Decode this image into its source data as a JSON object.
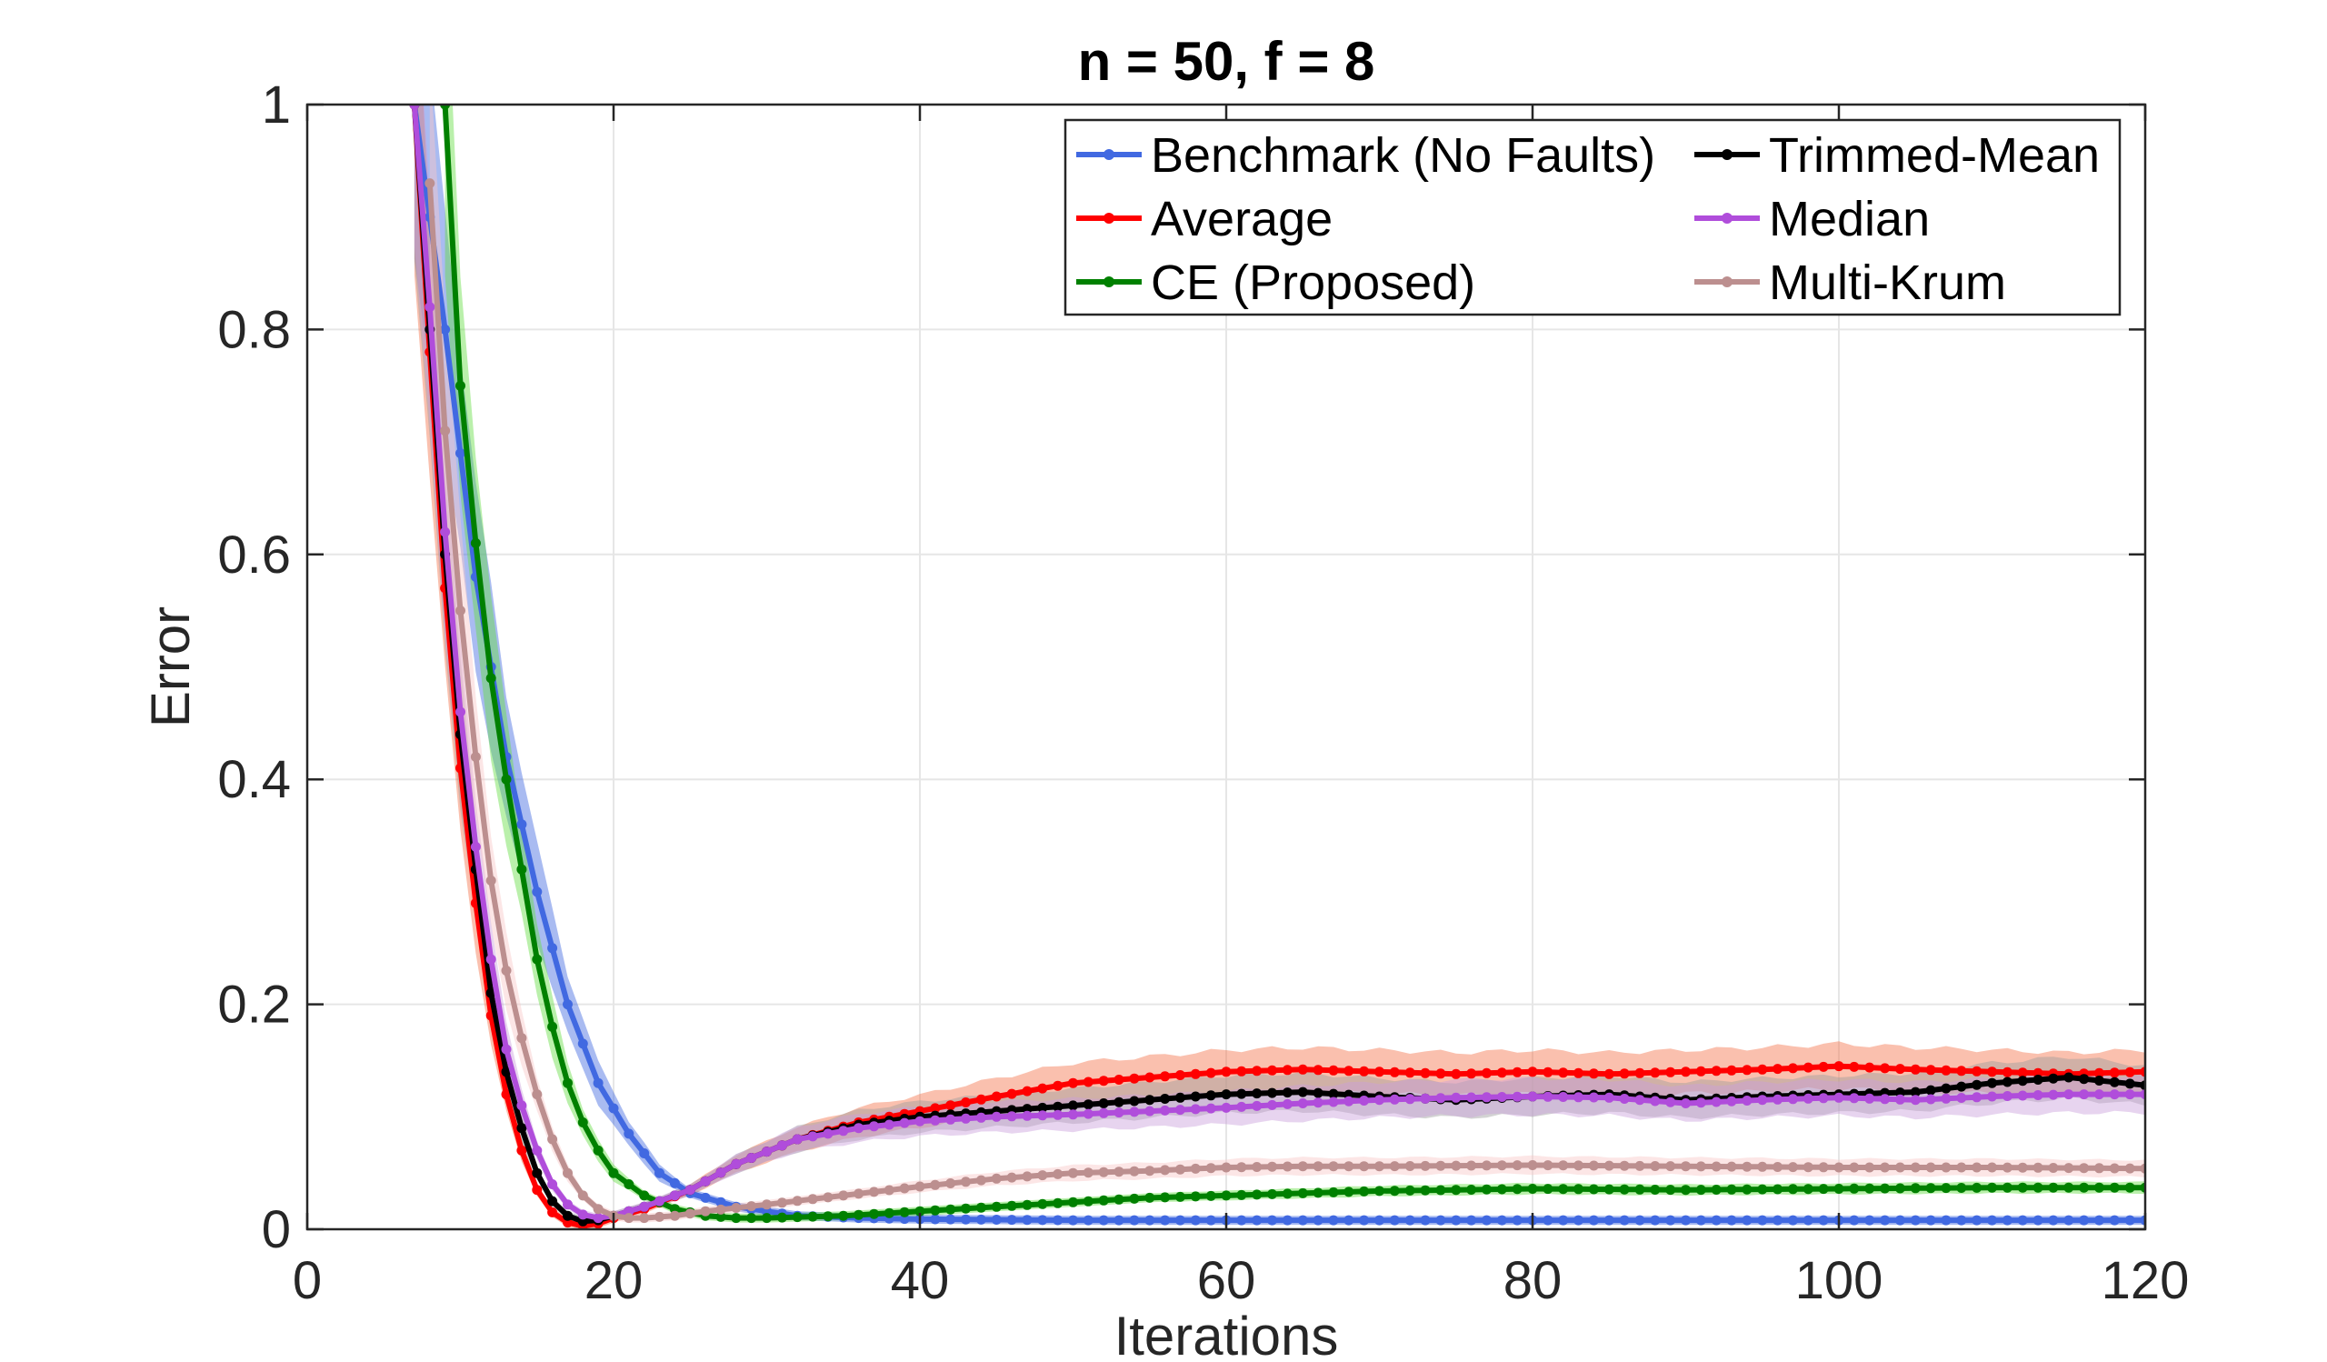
{
  "chart_data": {
    "type": "line",
    "title": "n = 50, f = 8",
    "xlabel": "Iterations",
    "ylabel": "Error",
    "xlim": [
      0,
      120
    ],
    "ylim": [
      0,
      1
    ],
    "xticks": [
      0,
      20,
      40,
      60,
      80,
      100,
      120
    ],
    "yticks": [
      0,
      0.2,
      0.4,
      0.6,
      0.8,
      1
    ],
    "xtick_labels": [
      "0",
      "20",
      "40",
      "60",
      "80",
      "100",
      "120"
    ],
    "ytick_labels": [
      "0",
      "0.2",
      "0.4",
      "0.6",
      "0.8",
      "1"
    ],
    "grid": true,
    "legend_position": "top-right",
    "legend_columns": 2,
    "series": [
      {
        "name": "Benchmark (No Faults)",
        "color": "#4169E1",
        "band_color": "#4169E1",
        "x": [
          7,
          9,
          11,
          13,
          15,
          17,
          19,
          21,
          23,
          25,
          28,
          32,
          36,
          40,
          50,
          60,
          70,
          80,
          90,
          100,
          110,
          120
        ],
        "y": [
          1.0,
          0.8,
          0.58,
          0.42,
          0.3,
          0.2,
          0.13,
          0.085,
          0.05,
          0.032,
          0.02,
          0.012,
          0.01,
          0.009,
          0.008,
          0.008,
          0.008,
          0.008,
          0.008,
          0.008,
          0.008,
          0.008
        ]
      },
      {
        "name": "Average",
        "color": "#FF0000",
        "band_color": "#F4734C",
        "x": [
          7,
          8,
          9,
          10,
          11,
          12,
          13,
          14,
          15,
          16,
          17,
          18,
          19,
          20,
          22,
          25,
          28,
          32,
          36,
          40,
          45,
          50,
          55,
          60,
          65,
          70,
          75,
          80,
          85,
          90,
          95,
          100,
          105,
          110,
          115,
          120
        ],
        "y": [
          1.0,
          0.78,
          0.57,
          0.41,
          0.29,
          0.19,
          0.12,
          0.07,
          0.035,
          0.015,
          0.006,
          0.003,
          0.005,
          0.01,
          0.018,
          0.035,
          0.058,
          0.08,
          0.095,
          0.105,
          0.118,
          0.13,
          0.135,
          0.14,
          0.142,
          0.14,
          0.138,
          0.14,
          0.138,
          0.14,
          0.142,
          0.145,
          0.142,
          0.14,
          0.138,
          0.14
        ]
      },
      {
        "name": "CE (Proposed)",
        "color": "#008000",
        "band_color": "#66DD44",
        "x": [
          9,
          10,
          11,
          12,
          13,
          14,
          15,
          16,
          17,
          18,
          19,
          20,
          22,
          24,
          26,
          28,
          30,
          35,
          40,
          45,
          50,
          55,
          60,
          70,
          80,
          90,
          100,
          110,
          120
        ],
        "y": [
          1.0,
          0.75,
          0.61,
          0.49,
          0.4,
          0.32,
          0.24,
          0.18,
          0.13,
          0.095,
          0.07,
          0.05,
          0.03,
          0.018,
          0.012,
          0.01,
          0.01,
          0.012,
          0.016,
          0.02,
          0.024,
          0.028,
          0.03,
          0.034,
          0.036,
          0.035,
          0.036,
          0.037,
          0.037
        ]
      },
      {
        "name": "Trimmed-Mean",
        "color": "#000000",
        "band_color": "#9E9E9E",
        "x": [
          7,
          8,
          9,
          10,
          11,
          12,
          13,
          14,
          15,
          16,
          17,
          18,
          19,
          20,
          22,
          25,
          28,
          32,
          36,
          40,
          45,
          50,
          55,
          60,
          65,
          70,
          75,
          80,
          85,
          90,
          95,
          100,
          105,
          110,
          115,
          120
        ],
        "y": [
          1.0,
          0.8,
          0.6,
          0.44,
          0.32,
          0.21,
          0.14,
          0.09,
          0.05,
          0.025,
          0.012,
          0.007,
          0.008,
          0.012,
          0.02,
          0.035,
          0.058,
          0.08,
          0.093,
          0.1,
          0.105,
          0.11,
          0.115,
          0.12,
          0.122,
          0.118,
          0.115,
          0.118,
          0.12,
          0.115,
          0.118,
          0.12,
          0.122,
          0.13,
          0.135,
          0.128
        ]
      },
      {
        "name": "Median",
        "color": "#B04DDB",
        "band_color": "#C9A0DC",
        "x": [
          7,
          8,
          9,
          10,
          11,
          12,
          13,
          14,
          15,
          16,
          17,
          18,
          19,
          20,
          22,
          25,
          28,
          32,
          36,
          40,
          45,
          50,
          55,
          60,
          65,
          70,
          75,
          80,
          85,
          90,
          95,
          100,
          105,
          110,
          115,
          120
        ],
        "y": [
          1.0,
          0.82,
          0.62,
          0.46,
          0.34,
          0.24,
          0.16,
          0.11,
          0.07,
          0.04,
          0.022,
          0.013,
          0.01,
          0.012,
          0.02,
          0.035,
          0.058,
          0.08,
          0.09,
          0.096,
          0.1,
          0.102,
          0.105,
          0.108,
          0.112,
          0.115,
          0.117,
          0.118,
          0.117,
          0.112,
          0.115,
          0.117,
          0.115,
          0.118,
          0.12,
          0.12
        ]
      },
      {
        "name": "Multi-Krum",
        "color": "#BC8F8F",
        "band_color": "#F9C8C8",
        "x": [
          8,
          9,
          10,
          11,
          12,
          13,
          14,
          15,
          16,
          17,
          18,
          19,
          20,
          21,
          22,
          24,
          26,
          30,
          35,
          40,
          45,
          50,
          55,
          60,
          65,
          70,
          80,
          90,
          100,
          110,
          120
        ],
        "y": [
          0.93,
          0.71,
          0.55,
          0.42,
          0.31,
          0.23,
          0.17,
          0.12,
          0.08,
          0.05,
          0.03,
          0.018,
          0.012,
          0.01,
          0.01,
          0.012,
          0.016,
          0.022,
          0.03,
          0.038,
          0.045,
          0.05,
          0.052,
          0.055,
          0.056,
          0.056,
          0.057,
          0.056,
          0.055,
          0.055,
          0.054
        ]
      }
    ]
  }
}
